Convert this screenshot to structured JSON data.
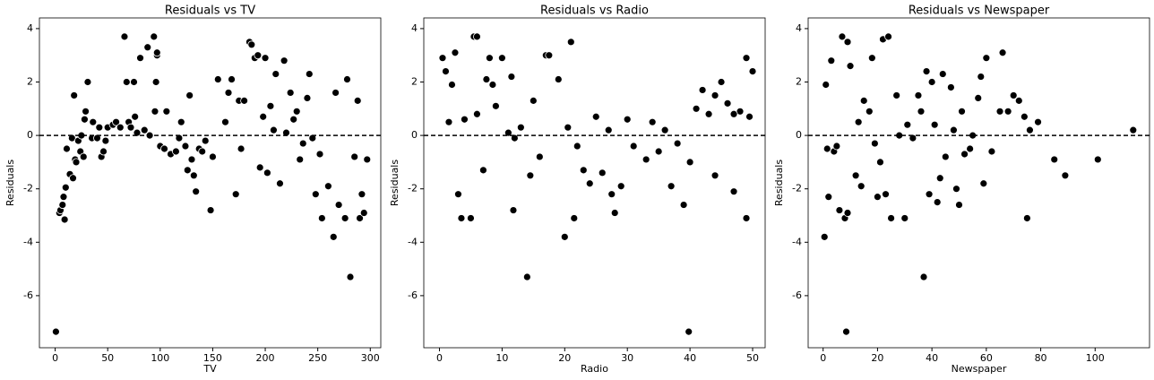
{
  "chart_data": [
    {
      "type": "scatter",
      "title": "Residuals vs TV",
      "xlabel": "TV",
      "ylabel": "Residuals",
      "color": "#000000",
      "hline": 0,
      "xlim": [
        -15,
        310
      ],
      "ylim": [
        -7.95,
        4.4
      ],
      "xticks": [
        0,
        50,
        100,
        150,
        200,
        250,
        300
      ],
      "yticks": [
        -6,
        -4,
        -2,
        0,
        2,
        4
      ],
      "x": [
        0.7,
        4,
        5,
        7,
        8,
        9,
        10,
        11,
        14,
        16,
        17,
        18,
        19,
        20,
        22,
        24,
        25,
        27,
        28,
        29,
        31,
        35,
        36,
        40,
        42,
        44,
        46,
        48,
        50,
        55,
        58,
        62,
        66,
        68,
        70,
        72,
        75,
        76,
        78,
        81,
        85,
        88,
        90,
        94,
        95,
        96,
        97,
        97,
        100,
        104,
        106,
        110,
        115,
        118,
        120,
        124,
        126,
        128,
        130,
        132,
        134,
        137,
        140,
        143,
        148,
        150,
        155,
        162,
        165,
        168,
        172,
        175,
        177,
        180,
        185,
        187,
        190,
        193,
        195,
        198,
        200,
        202,
        205,
        208,
        210,
        214,
        218,
        220,
        224,
        227,
        230,
        233,
        236,
        240,
        242,
        245,
        248,
        252,
        254,
        260,
        265,
        267,
        270,
        276,
        278,
        281,
        285,
        288,
        290,
        292,
        294,
        297
      ],
      "values": [
        -7.35,
        -2.9,
        -2.8,
        -2.6,
        -2.3,
        -3.15,
        -1.95,
        -0.5,
        -1.45,
        -0.1,
        -1.6,
        1.5,
        -0.9,
        -1.0,
        -0.2,
        -0.6,
        0.0,
        -0.8,
        0.6,
        0.9,
        2.0,
        -0.1,
        0.5,
        -0.1,
        0.3,
        -0.8,
        -0.6,
        -0.2,
        0.3,
        0.4,
        0.5,
        0.3,
        3.7,
        2.0,
        0.5,
        0.3,
        2.0,
        0.7,
        0.1,
        2.9,
        0.2,
        3.3,
        0.0,
        3.7,
        0.9,
        2.0,
        3.0,
        3.1,
        -0.4,
        -0.5,
        0.9,
        -0.7,
        -0.6,
        -0.1,
        0.5,
        -0.4,
        -1.3,
        1.5,
        -0.9,
        -1.5,
        -2.1,
        -0.5,
        -0.6,
        -0.2,
        -2.8,
        -0.8,
        2.1,
        0.5,
        1.6,
        2.1,
        -2.2,
        1.3,
        -0.5,
        1.3,
        3.5,
        3.4,
        2.9,
        3.0,
        -1.2,
        0.7,
        2.9,
        -1.4,
        1.1,
        0.2,
        2.3,
        -1.8,
        2.8,
        0.1,
        1.6,
        0.6,
        0.9,
        -0.9,
        -0.3,
        1.4,
        2.3,
        -0.1,
        -2.2,
        -0.7,
        -3.1,
        -1.9,
        -3.8,
        1.6,
        -2.6,
        -3.1,
        2.1,
        -5.3,
        -0.8,
        1.3,
        -3.1,
        -2.2,
        -2.9,
        -0.9
      ]
    },
    {
      "type": "scatter",
      "title": "Residuals vs Radio",
      "xlabel": "Radio",
      "ylabel": "Residuals",
      "color": "#000000",
      "hline": 0,
      "xlim": [
        -2.5,
        52
      ],
      "ylim": [
        -7.95,
        4.4
      ],
      "xticks": [
        0,
        10,
        20,
        30,
        40,
        50
      ],
      "yticks": [
        -6,
        -4,
        -2,
        0,
        2,
        4
      ],
      "x": [
        0.5,
        1,
        1.5,
        2,
        2.5,
        3,
        3.5,
        4,
        5,
        5.5,
        6,
        6,
        7,
        7.5,
        8,
        8.5,
        9,
        10,
        11,
        11.5,
        11.8,
        12,
        13,
        14,
        14.5,
        15,
        16,
        17,
        17.5,
        19,
        20,
        20.5,
        21,
        21.5,
        22,
        23,
        24,
        25,
        26,
        27,
        27.5,
        28,
        29,
        30,
        31,
        33,
        34,
        35,
        36,
        37,
        38,
        39,
        39.8,
        40,
        41,
        42,
        43,
        44,
        45,
        46,
        47,
        48,
        49,
        49,
        49.5,
        50,
        44,
        47
      ],
      "values": [
        2.9,
        2.4,
        0.5,
        1.9,
        3.1,
        -2.2,
        -3.1,
        0.6,
        -3.1,
        3.7,
        3.7,
        0.8,
        -1.3,
        2.1,
        2.9,
        1.9,
        1.1,
        2.9,
        0.1,
        2.2,
        -2.8,
        -0.1,
        0.3,
        -5.3,
        -1.5,
        1.3,
        -0.8,
        3.0,
        3.0,
        2.1,
        -3.8,
        0.3,
        3.5,
        -3.1,
        -0.4,
        -1.3,
        -1.8,
        0.7,
        -1.4,
        0.2,
        -2.2,
        -2.9,
        -1.9,
        0.6,
        -0.4,
        -0.9,
        0.5,
        -0.6,
        0.2,
        -1.9,
        -0.3,
        -2.6,
        -7.35,
        -1.0,
        1.0,
        1.7,
        0.8,
        -1.5,
        2.0,
        1.2,
        -2.1,
        0.9,
        -3.1,
        2.9,
        0.7,
        2.4,
        1.5,
        0.8
      ]
    },
    {
      "type": "scatter",
      "title": "Residuals vs Newspaper",
      "xlabel": "Newspaper",
      "ylabel": "Residuals",
      "color": "#000000",
      "hline": 0,
      "xlim": [
        -5.5,
        120
      ],
      "ylim": [
        -7.95,
        4.4
      ],
      "xticks": [
        0,
        20,
        40,
        60,
        80,
        100
      ],
      "yticks": [
        -6,
        -4,
        -2,
        0,
        2,
        4
      ],
      "x": [
        0.5,
        1,
        1.5,
        2,
        3,
        4,
        5,
        6,
        7,
        8,
        8.5,
        9,
        9,
        10,
        12,
        13,
        14,
        15,
        17,
        18,
        19,
        20,
        21,
        22,
        23,
        24,
        25,
        27,
        28,
        30,
        31,
        33,
        35,
        36,
        37,
        38,
        39,
        40,
        41,
        42,
        43,
        44,
        45,
        47,
        48,
        49,
        50,
        51,
        52,
        54,
        55,
        57,
        58,
        59,
        60,
        62,
        65,
        66,
        68,
        70,
        72,
        74,
        75,
        76,
        79,
        85,
        89,
        101,
        114
      ],
      "values": [
        -3.8,
        1.9,
        -0.5,
        -2.3,
        2.8,
        -0.6,
        -0.4,
        -2.8,
        3.7,
        -3.1,
        -7.35,
        3.5,
        -2.9,
        2.6,
        -1.5,
        0.5,
        -1.9,
        1.3,
        0.9,
        2.9,
        -0.3,
        -2.3,
        -1.0,
        3.6,
        -2.2,
        3.7,
        -3.1,
        1.5,
        0.0,
        -3.1,
        0.4,
        -0.1,
        1.5,
        0.9,
        -5.3,
        2.4,
        -2.2,
        2.0,
        0.4,
        -2.5,
        -1.6,
        2.3,
        -0.8,
        1.8,
        0.2,
        -2.0,
        -2.6,
        0.9,
        -0.7,
        -0.5,
        0.0,
        1.4,
        2.2,
        -1.8,
        2.9,
        -0.6,
        0.9,
        3.1,
        0.9,
        1.5,
        1.3,
        0.7,
        -3.1,
        0.2,
        0.5,
        -0.9,
        -1.5,
        -0.9,
        0.2
      ]
    }
  ]
}
